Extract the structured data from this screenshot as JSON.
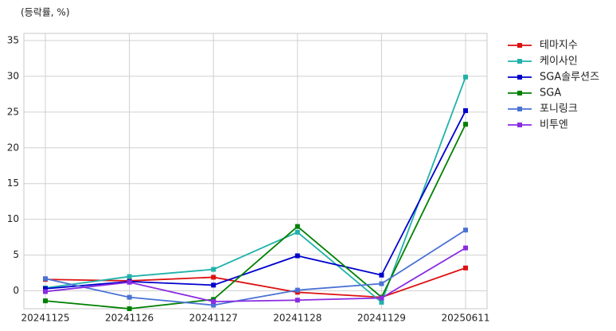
{
  "chart_data": {
    "type": "line",
    "ylabel": "(등락률, %)",
    "categories": [
      "20241125",
      "20241126",
      "20241127",
      "20241128",
      "20241129",
      "20250611"
    ],
    "series": [
      {
        "name": "테마지수",
        "color": "#dd1111",
        "values": [
          1.6,
          1.4,
          1.9,
          -0.2,
          -0.9,
          3.2
        ]
      },
      {
        "name": "케이사인",
        "color": "#20b2aa",
        "values": [
          0.4,
          2.0,
          3.0,
          8.2,
          -1.6,
          29.9
        ]
      },
      {
        "name": "SGA솔루션즈",
        "color": "#0000cd",
        "values": [
          0.3,
          1.3,
          0.8,
          4.9,
          2.2,
          25.2
        ]
      },
      {
        "name": "SGA",
        "color": "#008000",
        "values": [
          -1.4,
          -2.5,
          -1.2,
          9.0,
          -0.9,
          23.3
        ]
      },
      {
        "name": "포니링크",
        "color": "#4a72d4",
        "values": [
          1.7,
          -0.9,
          -2.0,
          0.1,
          1.0,
          8.5
        ]
      },
      {
        "name": "비투엔",
        "color": "#8a2be2",
        "values": [
          -0.1,
          1.2,
          -1.5,
          -1.3,
          -1.0,
          6.0
        ]
      }
    ],
    "ylim": [
      -2.5,
      36
    ],
    "yticks": [
      0,
      5,
      10,
      15,
      20,
      25,
      30,
      35
    ],
    "grid": true,
    "legend": "outside right"
  }
}
